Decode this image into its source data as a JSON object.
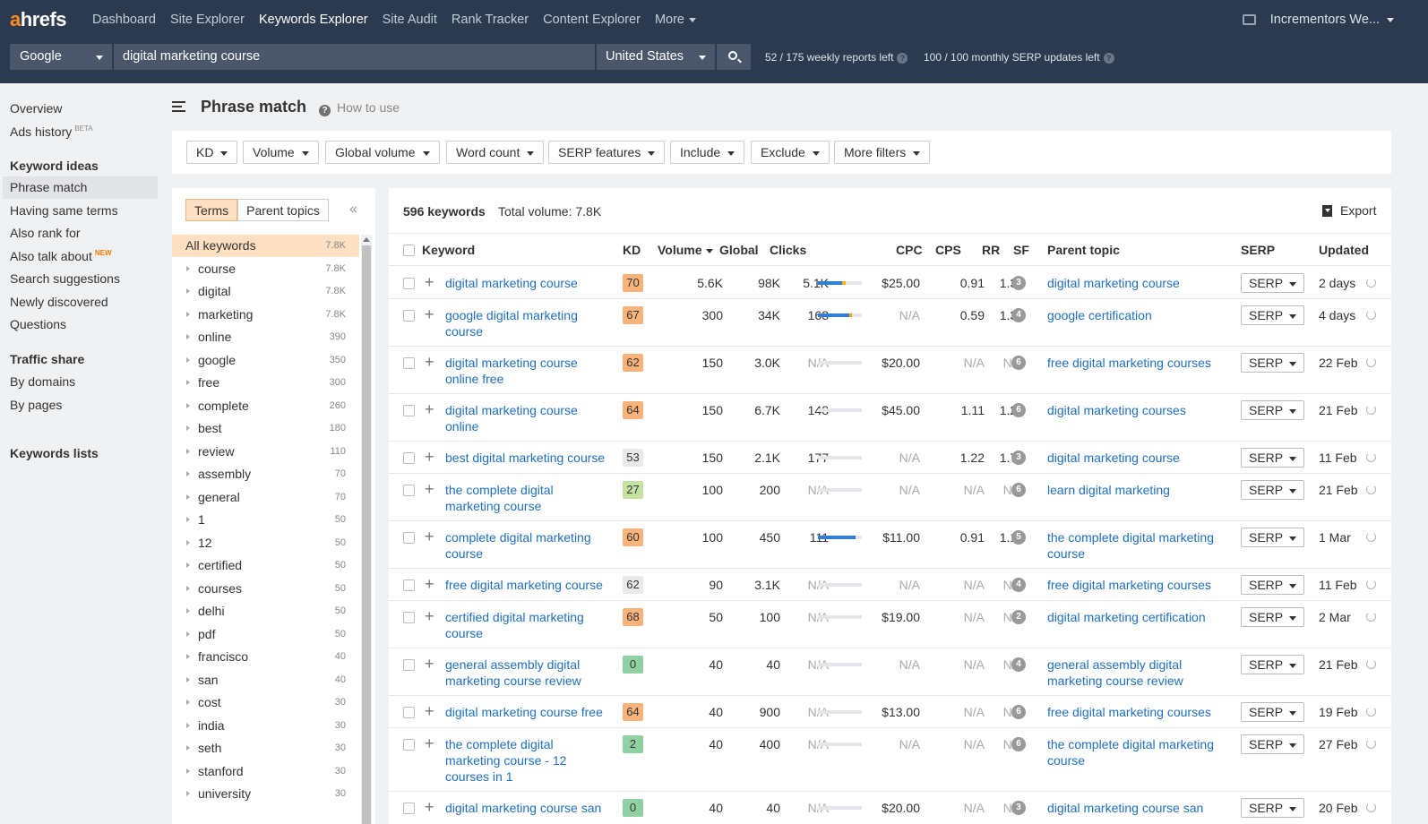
{
  "brand": {
    "logo_a": "a",
    "logo_rest": "hrefs"
  },
  "nav": {
    "items": [
      "Dashboard",
      "Site Explorer",
      "Keywords Explorer",
      "Site Audit",
      "Rank Tracker",
      "Content Explorer",
      "More"
    ],
    "active": "Keywords Explorer",
    "account": "Incrementors We..."
  },
  "search": {
    "engine": "Google",
    "query": "digital marketing course",
    "country": "United States",
    "weekly_reports": "52 / 175 weekly reports left",
    "monthly_updates": "100 / 100 monthly SERP updates left"
  },
  "sidebar": {
    "top": [
      {
        "label": "Overview"
      },
      {
        "label": "Ads history",
        "badge": "BETA"
      }
    ],
    "keyword_ideas_title": "Keyword ideas",
    "keyword_ideas": [
      {
        "label": "Phrase match",
        "active": true
      },
      {
        "label": "Having same terms"
      },
      {
        "label": "Also rank for"
      },
      {
        "label": "Also talk about",
        "badge": "NEW"
      },
      {
        "label": "Search suggestions"
      },
      {
        "label": "Newly discovered"
      },
      {
        "label": "Questions"
      }
    ],
    "traffic_share_title": "Traffic share",
    "traffic_share": [
      {
        "label": "By domains"
      },
      {
        "label": "By pages"
      }
    ],
    "keywords_lists_title": "Keywords lists"
  },
  "header": {
    "title": "Phrase match",
    "howto": "How to use"
  },
  "filters": [
    "KD",
    "Volume",
    "Global volume",
    "Word count",
    "SERP features",
    "Include",
    "Exclude",
    "More filters"
  ],
  "terms_panel": {
    "tabs": [
      "Terms",
      "Parent topics"
    ],
    "collapse_glyph": "«",
    "all_label": "All keywords",
    "all_count": "7.8K",
    "terms": [
      {
        "term": "course",
        "count": "7.8K"
      },
      {
        "term": "digital",
        "count": "7.8K"
      },
      {
        "term": "marketing",
        "count": "7.8K"
      },
      {
        "term": "online",
        "count": "390"
      },
      {
        "term": "google",
        "count": "350"
      },
      {
        "term": "free",
        "count": "300"
      },
      {
        "term": "complete",
        "count": "260"
      },
      {
        "term": "best",
        "count": "180"
      },
      {
        "term": "review",
        "count": "110"
      },
      {
        "term": "assembly",
        "count": "70"
      },
      {
        "term": "general",
        "count": "70"
      },
      {
        "term": "1",
        "count": "50"
      },
      {
        "term": "12",
        "count": "50"
      },
      {
        "term": "certified",
        "count": "50"
      },
      {
        "term": "courses",
        "count": "50"
      },
      {
        "term": "delhi",
        "count": "50"
      },
      {
        "term": "pdf",
        "count": "50"
      },
      {
        "term": "francisco",
        "count": "40"
      },
      {
        "term": "san",
        "count": "40"
      },
      {
        "term": "cost",
        "count": "30"
      },
      {
        "term": "india",
        "count": "30"
      },
      {
        "term": "seth",
        "count": "30"
      },
      {
        "term": "stanford",
        "count": "30"
      },
      {
        "term": "university",
        "count": "30"
      }
    ]
  },
  "table": {
    "count": "596 keywords",
    "total_volume": "Total volume: 7.8K",
    "export": "Export",
    "columns": {
      "keyword": "Keyword",
      "kd": "KD",
      "volume": "Volume",
      "global": "Global",
      "clicks": "Clicks",
      "cpc": "CPC",
      "cps": "CPS",
      "rr": "RR",
      "sf": "SF",
      "parent": "Parent topic",
      "serp": "SERP",
      "updated": "Updated"
    },
    "serp_btn": "SERP",
    "rows": [
      {
        "kw": "digital marketing course",
        "kd": "70",
        "kd_color": "#f9b37a",
        "vol": "5.6K",
        "global": "98K",
        "clicks": "5.1K",
        "click_bar": [
          {
            "w": 0.55,
            "c": "#2f7fd6"
          },
          {
            "w": 0.08,
            "c": "#ffb000"
          }
        ],
        "cpc": "$25.00",
        "cps": "0.91",
        "rr": "1.36",
        "sf": "3",
        "parent": "digital marketing course",
        "updated": "2 days"
      },
      {
        "kw": "google digital marketing course",
        "kd": "67",
        "kd_color": "#f9b37a",
        "vol": "300",
        "global": "34K",
        "clicks": "168",
        "click_bar": [
          {
            "w": 0.72,
            "c": "#2f7fd6"
          },
          {
            "w": 0.06,
            "c": "#ffb000"
          }
        ],
        "cpc": "N/A",
        "cps": "0.59",
        "rr": "1.38",
        "sf": "4",
        "parent": "google certification",
        "updated": "4 days"
      },
      {
        "kw": "digital marketing course online free",
        "kd": "62",
        "kd_color": "#f9b37a",
        "vol": "150",
        "global": "3.0K",
        "clicks": "N/A",
        "click_bar": [],
        "cpc": "$20.00",
        "cps": "N/A",
        "rr": "N/A",
        "sf": "6",
        "parent": "free digital marketing courses",
        "updated": "22 Feb"
      },
      {
        "kw": "digital marketing course online",
        "kd": "64",
        "kd_color": "#f9b37a",
        "vol": "150",
        "global": "6.7K",
        "clicks": "148",
        "click_bar": [],
        "cpc": "$45.00",
        "cps": "1.11",
        "rr": "1.23",
        "sf": "6",
        "parent": "digital marketing courses",
        "updated": "21 Feb"
      },
      {
        "kw": "best digital marketing course",
        "kd": "53",
        "kd_color": "#e9e9e9",
        "vol": "150",
        "global": "2.1K",
        "clicks": "177",
        "click_bar": [],
        "cpc": "N/A",
        "cps": "1.22",
        "rr": "1.76",
        "sf": "3",
        "parent": "digital marketing course",
        "updated": "11 Feb"
      },
      {
        "kw": "the complete digital marketing course",
        "kd": "27",
        "kd_color": "#c5e3a0",
        "vol": "100",
        "global": "200",
        "clicks": "N/A",
        "click_bar": [],
        "cpc": "N/A",
        "cps": "N/A",
        "rr": "N/A",
        "sf": "6",
        "parent": "learn digital marketing",
        "updated": "21 Feb"
      },
      {
        "kw": "complete digital marketing course",
        "kd": "60",
        "kd_color": "#f9b37a",
        "vol": "100",
        "global": "450",
        "clicks": "111",
        "click_bar": [
          {
            "w": 0.86,
            "c": "#2f7fd6"
          }
        ],
        "cpc": "$11.00",
        "cps": "0.91",
        "rr": "1.14",
        "sf": "5",
        "parent": "the complete digital marketing course",
        "updated": "1 Mar"
      },
      {
        "kw": "free digital marketing course",
        "kd": "62",
        "kd_color": "#e9e9e9",
        "vol": "90",
        "global": "3.1K",
        "clicks": "N/A",
        "click_bar": [],
        "cpc": "N/A",
        "cps": "N/A",
        "rr": "N/A",
        "sf": "4",
        "parent": "free digital marketing courses",
        "updated": "11 Feb"
      },
      {
        "kw": "certified digital marketing course",
        "kd": "68",
        "kd_color": "#f9b37a",
        "vol": "50",
        "global": "100",
        "clicks": "N/A",
        "click_bar": [],
        "cpc": "$19.00",
        "cps": "N/A",
        "rr": "N/A",
        "sf": "2",
        "parent": "digital marketing certification",
        "updated": "2 Mar"
      },
      {
        "kw": "general assembly digital marketing course review",
        "kd": "0",
        "kd_color": "#8fd1a2",
        "vol": "40",
        "global": "40",
        "clicks": "N/A",
        "click_bar": [],
        "cpc": "N/A",
        "cps": "N/A",
        "rr": "N/A",
        "sf": "4",
        "parent": "general assembly digital marketing course review",
        "updated": "21 Feb"
      },
      {
        "kw": "digital marketing course free",
        "kd": "64",
        "kd_color": "#f9b37a",
        "vol": "40",
        "global": "900",
        "clicks": "N/A",
        "click_bar": [],
        "cpc": "$13.00",
        "cps": "N/A",
        "rr": "N/A",
        "sf": "6",
        "parent": "free digital marketing courses",
        "updated": "19 Feb"
      },
      {
        "kw": "the complete digital marketing course - 12 courses in 1",
        "kd": "2",
        "kd_color": "#8fd1a2",
        "vol": "40",
        "global": "400",
        "clicks": "N/A",
        "click_bar": [],
        "cpc": "N/A",
        "cps": "N/A",
        "rr": "N/A",
        "sf": "6",
        "parent": "the complete digital marketing course",
        "updated": "27 Feb"
      },
      {
        "kw": "digital marketing course san",
        "kd": "0",
        "kd_color": "#8fd1a2",
        "vol": "40",
        "global": "40",
        "clicks": "N/A",
        "click_bar": [],
        "cpc": "$20.00",
        "cps": "N/A",
        "rr": "N/A",
        "sf": "3",
        "parent": "digital marketing course san",
        "updated": "20 Feb"
      }
    ]
  }
}
